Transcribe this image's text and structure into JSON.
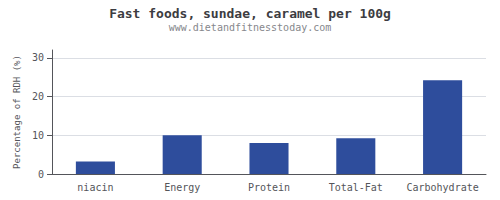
{
  "chart_data": {
    "type": "bar",
    "title": "Fast foods, sundae, caramel per 100g",
    "subtitle": "www.dietandfitnesstoday.com",
    "categories": [
      "niacin",
      "Energy",
      "Protein",
      "Total-Fat",
      "Carbohydrate"
    ],
    "values": [
      3.2,
      10.0,
      8.0,
      9.2,
      24.2
    ],
    "color": "#2e4d9c",
    "ylabel": "Percentage of RDH (%)",
    "ylim": [
      0,
      32
    ],
    "yticks": [
      0,
      10,
      20,
      30
    ],
    "grid": true
  }
}
